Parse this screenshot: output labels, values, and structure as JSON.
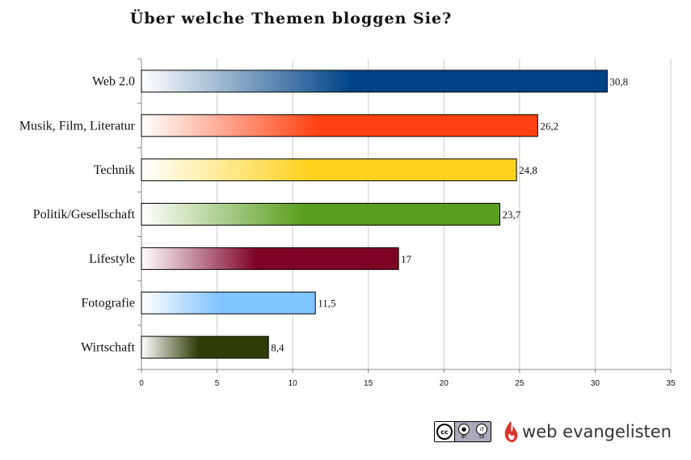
{
  "chart_data": {
    "type": "bar",
    "orientation": "horizontal",
    "title": "Über welche Themen bloggen Sie?",
    "categories": [
      "Web 2.0",
      "Musik, Film, Literatur",
      "Technik",
      "Politik/Gesellschaft",
      "Lifestyle",
      "Fotografie",
      "Wirtschaft"
    ],
    "values": [
      30.8,
      26.2,
      24.8,
      23.7,
      17,
      11.5,
      8.4
    ],
    "value_labels": [
      "30,8",
      "26,2",
      "24,8",
      "23,7",
      "17",
      "11,5",
      "8,4"
    ],
    "colors": [
      "#004487",
      "#ff4010",
      "#ffd21e",
      "#5a9e1e",
      "#7d0025",
      "#7fc3ff",
      "#2e3c08"
    ],
    "xlim": [
      0,
      35
    ],
    "xticks": [
      "0",
      "5",
      "10",
      "15",
      "20",
      "25",
      "30",
      "35"
    ],
    "grid": true
  },
  "footer": {
    "cc_label": "cc",
    "cc_by": "BY",
    "cc_sa": "SA",
    "brand": "web evangelisten"
  }
}
